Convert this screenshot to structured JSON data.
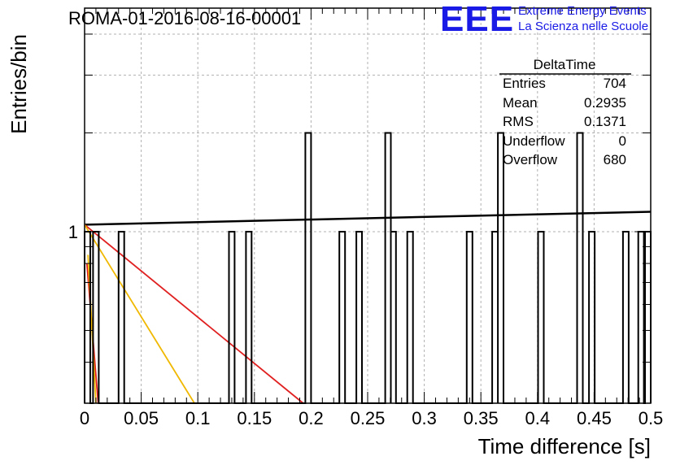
{
  "title": "ROMA-01-2016-08-16-00001",
  "logo": {
    "mark": "EEE",
    "line1": "Extreme Energy Events",
    "line2": "La Scienza nelle Scuole",
    "color": "#1a1ae6"
  },
  "stats_box": {
    "name": "DeltaTime",
    "rows": [
      {
        "label": "Entries",
        "value": "704"
      },
      {
        "label": "Mean",
        "value": "0.2935"
      },
      {
        "label": "RMS",
        "value": "0.1371"
      },
      {
        "label": "Underflow",
        "value": "0"
      },
      {
        "label": "Overflow",
        "value": "680"
      }
    ]
  },
  "chart_data": {
    "type": "bar",
    "histogram": true,
    "xlabel": "Time difference [s]",
    "ylabel": "Entries/bin",
    "xlim": [
      0,
      0.5
    ],
    "ylim": [
      0.3,
      4.8
    ],
    "y_log_scale": true,
    "grid": true,
    "x_ticks": [
      "0",
      "0.05",
      "0.1",
      "0.15",
      "0.2",
      "0.25",
      "0.3",
      "0.35",
      "0.4",
      "0.45",
      "0.5"
    ],
    "y_ticks": [
      "1"
    ],
    "bin_width": 0.005,
    "bins": [
      {
        "x0": 0.0,
        "count": 1
      },
      {
        "x0": 0.0075,
        "count": 1
      },
      {
        "x0": 0.03,
        "count": 1
      },
      {
        "x0": 0.1275,
        "count": 1
      },
      {
        "x0": 0.1425,
        "count": 1
      },
      {
        "x0": 0.195,
        "count": 2
      },
      {
        "x0": 0.225,
        "count": 1
      },
      {
        "x0": 0.24,
        "count": 1
      },
      {
        "x0": 0.2655,
        "count": 2
      },
      {
        "x0": 0.27,
        "count": 1
      },
      {
        "x0": 0.285,
        "count": 1
      },
      {
        "x0": 0.3375,
        "count": 1
      },
      {
        "x0": 0.36,
        "count": 1
      },
      {
        "x0": 0.365,
        "count": 2
      },
      {
        "x0": 0.4005,
        "count": 1
      },
      {
        "x0": 0.435,
        "count": 2
      },
      {
        "x0": 0.4455,
        "count": 1
      },
      {
        "x0": 0.4755,
        "count": 1
      },
      {
        "x0": 0.489,
        "count": 1
      },
      {
        "x0": 0.495,
        "count": 1
      }
    ],
    "fit_lines": [
      {
        "color": "#000000",
        "points": [
          [
            0,
            1.05
          ],
          [
            0.5,
            1.15
          ]
        ]
      },
      {
        "color": "#e02020",
        "points": [
          [
            0,
            1.05
          ],
          [
            0.193,
            0.3
          ]
        ]
      },
      {
        "color": "#f0b800",
        "points": [
          [
            0,
            1.05
          ],
          [
            0.097,
            0.3
          ]
        ]
      },
      {
        "color": "#e02020",
        "points": [
          [
            0.002,
            0.8
          ],
          [
            0.012,
            0.3
          ]
        ]
      },
      {
        "color": "#f0b800",
        "points": [
          [
            0.003,
            0.85
          ],
          [
            0.01,
            0.3
          ]
        ]
      }
    ]
  }
}
